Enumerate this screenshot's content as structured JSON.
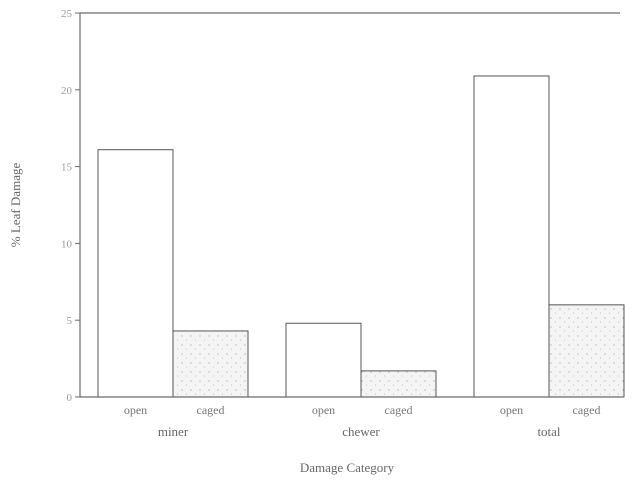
{
  "chart_data": {
    "type": "bar",
    "title": "",
    "xlabel": "Damage Category",
    "ylabel": "% Leaf Damage",
    "ylim": [
      0,
      25
    ],
    "yticks": [
      0,
      5,
      10,
      15,
      20,
      25
    ],
    "ytick_labels": [
      "0",
      "5",
      "10",
      "15",
      "20",
      "25"
    ],
    "groups": [
      {
        "label": "miner",
        "bars": [
          {
            "label": "open",
            "value": 16.1,
            "fill": "#ffffff",
            "stippled": false
          },
          {
            "label": "caged",
            "value": 4.3,
            "fill": "#f2f2f2",
            "stippled": true
          }
        ]
      },
      {
        "label": "chewer",
        "bars": [
          {
            "label": "open",
            "value": 4.8,
            "fill": "#ffffff",
            "stippled": false
          },
          {
            "label": "caged",
            "value": 1.7,
            "fill": "#f2f2f2",
            "stippled": true
          }
        ]
      },
      {
        "label": "total",
        "bars": [
          {
            "label": "open",
            "value": 20.9,
            "fill": "#ffffff",
            "stippled": false
          },
          {
            "label": "caged",
            "value": 6.0,
            "fill": "#f2f2f2",
            "stippled": true
          }
        ]
      }
    ],
    "grid": false,
    "legend": "none"
  },
  "colors": {
    "axis": "#6a6a6a",
    "bar_outline": "#555555",
    "stipple": "#9a9a9a"
  }
}
